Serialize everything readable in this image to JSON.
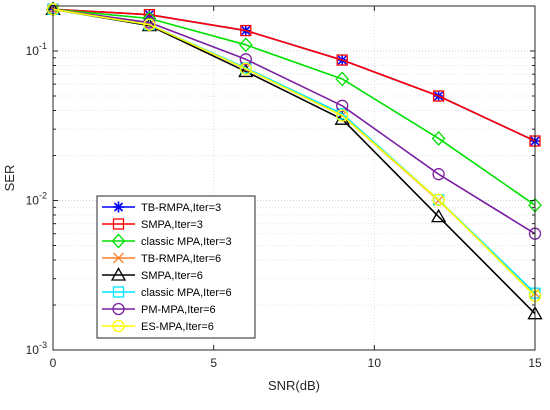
{
  "chart_data": {
    "type": "line",
    "title": "",
    "xlabel": "SNR(dB)",
    "ylabel": "SER",
    "xlim": [
      0,
      15
    ],
    "ylim": [
      0.001,
      0.2
    ],
    "yscale": "log",
    "grid": true,
    "legend_position": "bottom-left",
    "xticks": [
      0,
      5,
      10,
      15
    ],
    "x_tick_labels": [
      "0",
      "5",
      "10",
      "15"
    ],
    "yticks": [
      0.001,
      0.01,
      0.1
    ],
    "y_tick_labels": [
      {
        "base": "10",
        "exp": "-3"
      },
      {
        "base": "10",
        "exp": "-2"
      },
      {
        "base": "10",
        "exp": "-1"
      }
    ],
    "x": [
      0,
      3,
      6,
      9,
      12,
      15
    ],
    "series": [
      {
        "name": "TB-RMPA,Iter=3",
        "color": "#0000ff",
        "marker": "asterisk",
        "values": [
          0.19,
          0.175,
          0.137,
          0.087,
          0.05,
          0.025
        ]
      },
      {
        "name": "SMPA,Iter=3",
        "color": "#ff0000",
        "marker": "square",
        "values": [
          0.19,
          0.175,
          0.137,
          0.087,
          0.05,
          0.025
        ]
      },
      {
        "name": "classic MPA,Iter=3",
        "color": "#00e000",
        "marker": "diamond",
        "values": [
          0.19,
          0.165,
          0.11,
          0.065,
          0.026,
          0.0093
        ]
      },
      {
        "name": "TB-RMPA,Iter=6",
        "color": "#ff7f27",
        "marker": "x",
        "values": [
          0.19,
          0.15,
          0.076,
          0.037,
          0.01,
          0.0024
        ]
      },
      {
        "name": "SMPA,Iter=6",
        "color": "#000000",
        "marker": "triangle",
        "values": [
          0.19,
          0.148,
          0.073,
          0.035,
          0.0078,
          0.00175
        ]
      },
      {
        "name": "classic MPA,Iter=6",
        "color": "#00e5ff",
        "marker": "square",
        "values": [
          0.19,
          0.15,
          0.077,
          0.038,
          0.0101,
          0.0024
        ]
      },
      {
        "name": "PM-MPA,Iter=6",
        "color": "#7a1fa2",
        "marker": "circle",
        "values": [
          0.19,
          0.155,
          0.088,
          0.043,
          0.015,
          0.006
        ]
      },
      {
        "name": "ES-MPA,Iter=6",
        "color": "#ffff00",
        "marker": "circle",
        "values": [
          0.19,
          0.15,
          0.076,
          0.037,
          0.0101,
          0.0023
        ]
      }
    ]
  }
}
